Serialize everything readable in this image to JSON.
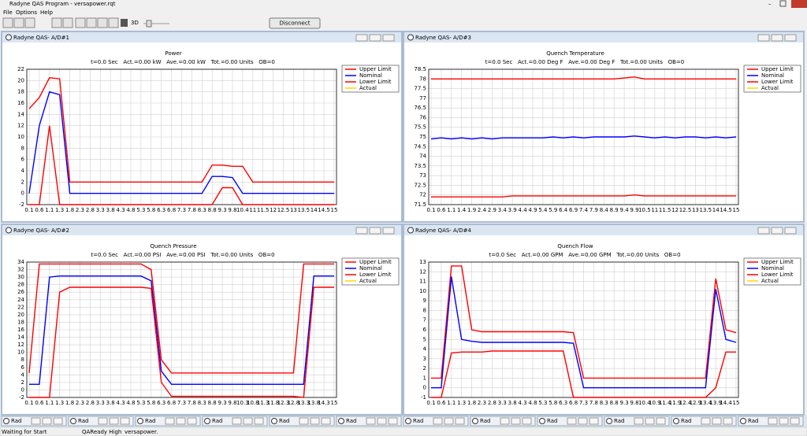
{
  "window_title": "Radyne QAS Program - versapower.rqt",
  "menu": [
    "File",
    "Options",
    "Help"
  ],
  "toolbar": {
    "mode": "3D",
    "button": "Disconnect"
  },
  "chart_data": [
    {
      "type": "line",
      "window_title": "Radyne QAS- A/D#1",
      "title": "Power",
      "subtitle": "t=0.0 Sec   Act.=0.00 kW   Ave.=0.00 kW   Tot.=0.00 Units   OB=0",
      "categories": [
        "0.1",
        "0.6",
        "1.1",
        "1.3",
        "1.8",
        "2.3",
        "2.8",
        "3.3",
        "3.8",
        "4.3",
        "4.8",
        "5.3",
        "5.8",
        "6.3",
        "6.8",
        "7.3",
        "7.8",
        "8.3",
        "8.8",
        "9.3",
        "9.8",
        "10.4",
        "11",
        "11.5",
        "12",
        "12.5",
        "13",
        "13.5",
        "14",
        "14.5",
        "15"
      ],
      "ylim": [
        -2,
        22
      ],
      "yticks": [
        -2,
        0,
        2,
        4,
        6,
        8,
        10,
        12,
        14,
        16,
        18,
        20,
        22
      ],
      "grid": true,
      "series": [
        {
          "name": "Upper Limit",
          "color": "#ff0000",
          "values": [
            15,
            17,
            20.5,
            20.3,
            2,
            2,
            2,
            2,
            2,
            2,
            2,
            2,
            2,
            2,
            2,
            2,
            2,
            2,
            5,
            5,
            4.8,
            4.8,
            2,
            2,
            2,
            2,
            2,
            2,
            2,
            2,
            2
          ]
        },
        {
          "name": "Nominal",
          "color": "#0000ff",
          "values": [
            0,
            12,
            18,
            17.5,
            0,
            0,
            0,
            0,
            0,
            0,
            0,
            0,
            0,
            0,
            0,
            0,
            0,
            0,
            3,
            3,
            2.8,
            0,
            0,
            0,
            0,
            0,
            0,
            0,
            0,
            0,
            0
          ]
        },
        {
          "name": "Lower Limit",
          "color": "#ff0000",
          "values": [
            -2,
            -2,
            12,
            -2,
            -2,
            -2,
            -2,
            -2,
            -2,
            -2,
            -2,
            -2,
            -2,
            -2,
            -2,
            -2,
            -2,
            -2,
            -2,
            1,
            1,
            -2,
            -2,
            -2,
            -2,
            -2,
            -2,
            -2,
            -2,
            -2,
            -2
          ]
        },
        {
          "name": "Actual",
          "color": "#ffd700",
          "values": [
            null,
            null,
            null,
            null,
            null,
            null,
            null,
            null,
            null,
            null,
            null,
            null,
            null,
            null,
            null,
            null,
            null,
            null,
            null,
            null,
            null,
            null,
            null,
            null,
            null,
            null,
            null,
            null,
            null,
            null,
            null
          ]
        }
      ]
    },
    {
      "type": "line",
      "window_title": "Radyne QAS- A/D#3",
      "title": "Quench Temperature",
      "subtitle": "t=0.0 Sec   Act.=0.00 Deg F   Ave.=0.00 Deg F   Tot.=0.00 Units   OB=0",
      "categories": [
        "0.1",
        "0.6",
        "1.1",
        "1.4",
        "1.9",
        "2.4",
        "2.9",
        "3.4",
        "3.9",
        "4.4",
        "4.9",
        "5.4",
        "5.9",
        "6.4",
        "6.9",
        "7.4",
        "7.9",
        "8.4",
        "8.9",
        "9.4",
        "9.9",
        "10.5",
        "11",
        "11.5",
        "12",
        "12.5",
        "13",
        "13.5",
        "14",
        "14.5",
        "15"
      ],
      "ylim": [
        71.5,
        78.5
      ],
      "yticks": [
        71.5,
        72,
        72.5,
        73,
        73.5,
        74,
        74.5,
        75,
        75.5,
        76,
        76.5,
        77,
        77.5,
        78,
        78.5
      ],
      "grid": true,
      "series": [
        {
          "name": "Upper Limit",
          "color": "#ff0000",
          "values": [
            78,
            78,
            78,
            78,
            78,
            78,
            78,
            78,
            78,
            78,
            78,
            78,
            78,
            78,
            78,
            78,
            78,
            78,
            78,
            78.05,
            78.1,
            78,
            78,
            78,
            78,
            78,
            78,
            78,
            78,
            78,
            78
          ]
        },
        {
          "name": "Nominal",
          "color": "#0000ff",
          "values": [
            74.9,
            74.95,
            74.9,
            74.95,
            74.9,
            74.95,
            74.9,
            74.95,
            74.95,
            74.95,
            74.95,
            74.95,
            75,
            74.95,
            75,
            74.95,
            75,
            75,
            75,
            75,
            75.05,
            75,
            74.95,
            75,
            74.95,
            75,
            75,
            74.95,
            75,
            74.95,
            75
          ]
        },
        {
          "name": "Lower Limit",
          "color": "#ff0000",
          "values": [
            71.9,
            71.9,
            71.9,
            71.9,
            71.9,
            71.9,
            71.9,
            71.9,
            71.95,
            71.95,
            71.95,
            71.95,
            71.95,
            71.95,
            71.95,
            71.95,
            71.95,
            71.95,
            71.95,
            71.95,
            72,
            71.95,
            71.95,
            71.95,
            71.95,
            71.95,
            71.95,
            71.95,
            71.95,
            71.95,
            71.95
          ]
        },
        {
          "name": "Actual",
          "color": "#ffd700",
          "values": [
            null,
            null,
            null,
            null,
            null,
            null,
            null,
            null,
            null,
            null,
            null,
            null,
            null,
            null,
            null,
            null,
            null,
            null,
            null,
            null,
            null,
            null,
            null,
            null,
            null,
            null,
            null,
            null,
            null,
            null,
            null
          ]
        }
      ]
    },
    {
      "type": "line",
      "window_title": "Radyne QAS- A/D#2",
      "title": "Quench Pressure",
      "subtitle": "t=0.0 Sec   Act.=0.00 PSI   Ave.=0.00 PSI   Tot.=0.00 Units   OB=0",
      "categories": [
        "0.1",
        "0.6",
        "1.1",
        "1.3",
        "1.8",
        "2.3",
        "2.8",
        "3.3",
        "3.8",
        "4.3",
        "4.8",
        "5.3",
        "5.8",
        "6.3",
        "6.8",
        "7.3",
        "7.8",
        "8.3",
        "8.8",
        "9.3",
        "9.8",
        "10.3",
        "10.8",
        "11.3",
        "11.8",
        "12.3",
        "12.8",
        "13.3",
        "13.8",
        "14.3",
        "15"
      ],
      "ylim": [
        -2,
        34
      ],
      "yticks": [
        -2,
        0,
        2,
        4,
        6,
        8,
        10,
        12,
        14,
        16,
        18,
        20,
        22,
        24,
        26,
        28,
        30,
        32,
        34
      ],
      "grid": true,
      "series": [
        {
          "name": "Upper Limit",
          "color": "#ff0000",
          "values": [
            4.5,
            33.5,
            33.5,
            33.5,
            33.5,
            33.5,
            33.5,
            33.5,
            33.5,
            33.5,
            33.5,
            33.5,
            32,
            8,
            4.5,
            4.5,
            4.5,
            4.5,
            4.5,
            4.5,
            4.5,
            4.5,
            4.5,
            4.5,
            4.5,
            4.5,
            4.5,
            33.5,
            33.5,
            33.5,
            33.5
          ]
        },
        {
          "name": "Nominal",
          "color": "#0000ff",
          "values": [
            1.5,
            1.5,
            30,
            30.3,
            30.3,
            30.3,
            30.3,
            30.3,
            30.3,
            30.3,
            30.3,
            30.3,
            29,
            5,
            1.5,
            1.5,
            1.5,
            1.5,
            1.5,
            1.5,
            1.5,
            1.5,
            1.5,
            1.5,
            1.5,
            1.5,
            1.5,
            1.5,
            30.3,
            30.3,
            30.3
          ]
        },
        {
          "name": "Lower Limit",
          "color": "#ff0000",
          "values": [
            -2,
            -2,
            -2,
            26,
            27.3,
            27.3,
            27.3,
            27.3,
            27.3,
            27.3,
            27.3,
            27.3,
            27,
            2,
            -1.7,
            -1.7,
            -1.7,
            -1.7,
            -1.7,
            -1.7,
            -1.7,
            -1.7,
            -1.7,
            -1.7,
            -1.7,
            -1.7,
            -1.7,
            -2,
            27.3,
            27.3,
            27.3
          ]
        },
        {
          "name": "Actual",
          "color": "#ffd700",
          "values": [
            null,
            null,
            null,
            null,
            null,
            null,
            null,
            null,
            null,
            null,
            null,
            null,
            null,
            null,
            null,
            null,
            null,
            null,
            null,
            null,
            null,
            null,
            null,
            null,
            null,
            null,
            null,
            null,
            null,
            null,
            null
          ]
        }
      ]
    },
    {
      "type": "line",
      "window_title": "Radyne QAS- A/D#4",
      "title": "Quench Flow",
      "subtitle": "t=0.0 Sec   Act.=0.00 GPM   Ave.=0.00 GPM   Tot.=0.00 Units   OB=0",
      "categories": [
        "0.1",
        "0.6",
        "1.1",
        "1.3",
        "1.8",
        "2.3",
        "2.8",
        "3.3",
        "3.8",
        "4.3",
        "4.8",
        "5.3",
        "5.8",
        "6.3",
        "6.8",
        "7.3",
        "7.8",
        "8.3",
        "8.8",
        "9.3",
        "9.8",
        "10.4",
        "10.9",
        "11.4",
        "11.9",
        "12.4",
        "12.9",
        "13.4",
        "13.9",
        "14.4",
        "15"
      ],
      "ylim": [
        -1,
        13
      ],
      "yticks": [
        -1,
        0,
        1,
        2,
        3,
        4,
        5,
        6,
        7,
        8,
        9,
        10,
        11,
        12,
        13
      ],
      "grid": true,
      "series": [
        {
          "name": "Upper Limit",
          "color": "#ff0000",
          "values": [
            1,
            1,
            12.6,
            12.6,
            6,
            5.8,
            5.8,
            5.8,
            5.8,
            5.8,
            5.8,
            5.8,
            5.8,
            5.8,
            5.7,
            1,
            1,
            1,
            1,
            1,
            1,
            1,
            1,
            1,
            1,
            1,
            1,
            1,
            11.3,
            6,
            5.7
          ]
        },
        {
          "name": "Nominal",
          "color": "#0000ff",
          "values": [
            0,
            0,
            11.5,
            5,
            4.8,
            4.7,
            4.7,
            4.7,
            4.7,
            4.7,
            4.7,
            4.7,
            4.7,
            4.7,
            4.6,
            0,
            0,
            0,
            0,
            0,
            0,
            0,
            0,
            0,
            0,
            0,
            0,
            0,
            10.2,
            5,
            4.7
          ]
        },
        {
          "name": "Lower Limit",
          "color": "#ff0000",
          "values": [
            -1,
            -1,
            3.6,
            3.7,
            3.7,
            3.7,
            3.8,
            3.8,
            3.8,
            3.8,
            3.8,
            3.8,
            3.8,
            3.8,
            -1,
            -1,
            -1,
            -1,
            -1,
            -1,
            -1,
            -1,
            -1,
            -1,
            -1,
            -1,
            -1,
            -1,
            0,
            3.7,
            3.7
          ]
        },
        {
          "name": "Actual",
          "color": "#ffd700",
          "values": [
            null,
            null,
            null,
            null,
            null,
            null,
            null,
            null,
            null,
            null,
            null,
            null,
            null,
            null,
            null,
            null,
            null,
            null,
            null,
            null,
            null,
            null,
            null,
            null,
            null,
            null,
            null,
            null,
            null,
            null,
            null
          ]
        }
      ]
    }
  ],
  "taskbar": [
    "Rad",
    "Rad",
    "Rad",
    "Rad",
    "Rad",
    "Rad",
    "Rad",
    "Rad",
    "Rad",
    "Rad",
    "Rad",
    "Rad"
  ],
  "status": [
    "Waiting for Start",
    "QAReady High",
    "versapower."
  ]
}
